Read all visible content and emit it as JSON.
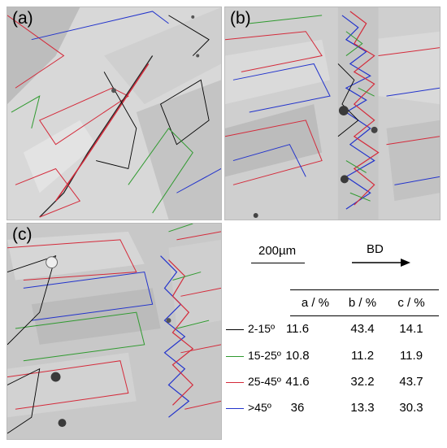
{
  "panels": {
    "a": {
      "label": "(a)"
    },
    "b": {
      "label": "(b)"
    },
    "c": {
      "label": "(c)"
    }
  },
  "scale_bar": {
    "label": "200µm"
  },
  "direction": {
    "label": "BD"
  },
  "table": {
    "headers": [
      "a / %",
      "b / %",
      "c / %"
    ],
    "rows": [
      {
        "label": "2-15º",
        "color": "#000000",
        "values": [
          "11.6",
          "43.4",
          "14.1"
        ]
      },
      {
        "label": "15-25º",
        "color": "#2f9a2f",
        "values": [
          "10.8",
          "11.2",
          "11.9"
        ]
      },
      {
        "label": "25-45º",
        "color": "#d42a3a",
        "values": [
          "41.6",
          "32.2",
          "43.7"
        ]
      },
      {
        "label": ">45º",
        "color": "#2233cc",
        "values": [
          "36",
          "13.3",
          "30.3"
        ]
      }
    ]
  },
  "colors": {
    "low_angle": "#000000",
    "mid_angle": "#2f9a2f",
    "high_angle": "#d42a3a",
    "very_high_angle": "#2233cc",
    "background_gray": "#c9c9c9"
  }
}
